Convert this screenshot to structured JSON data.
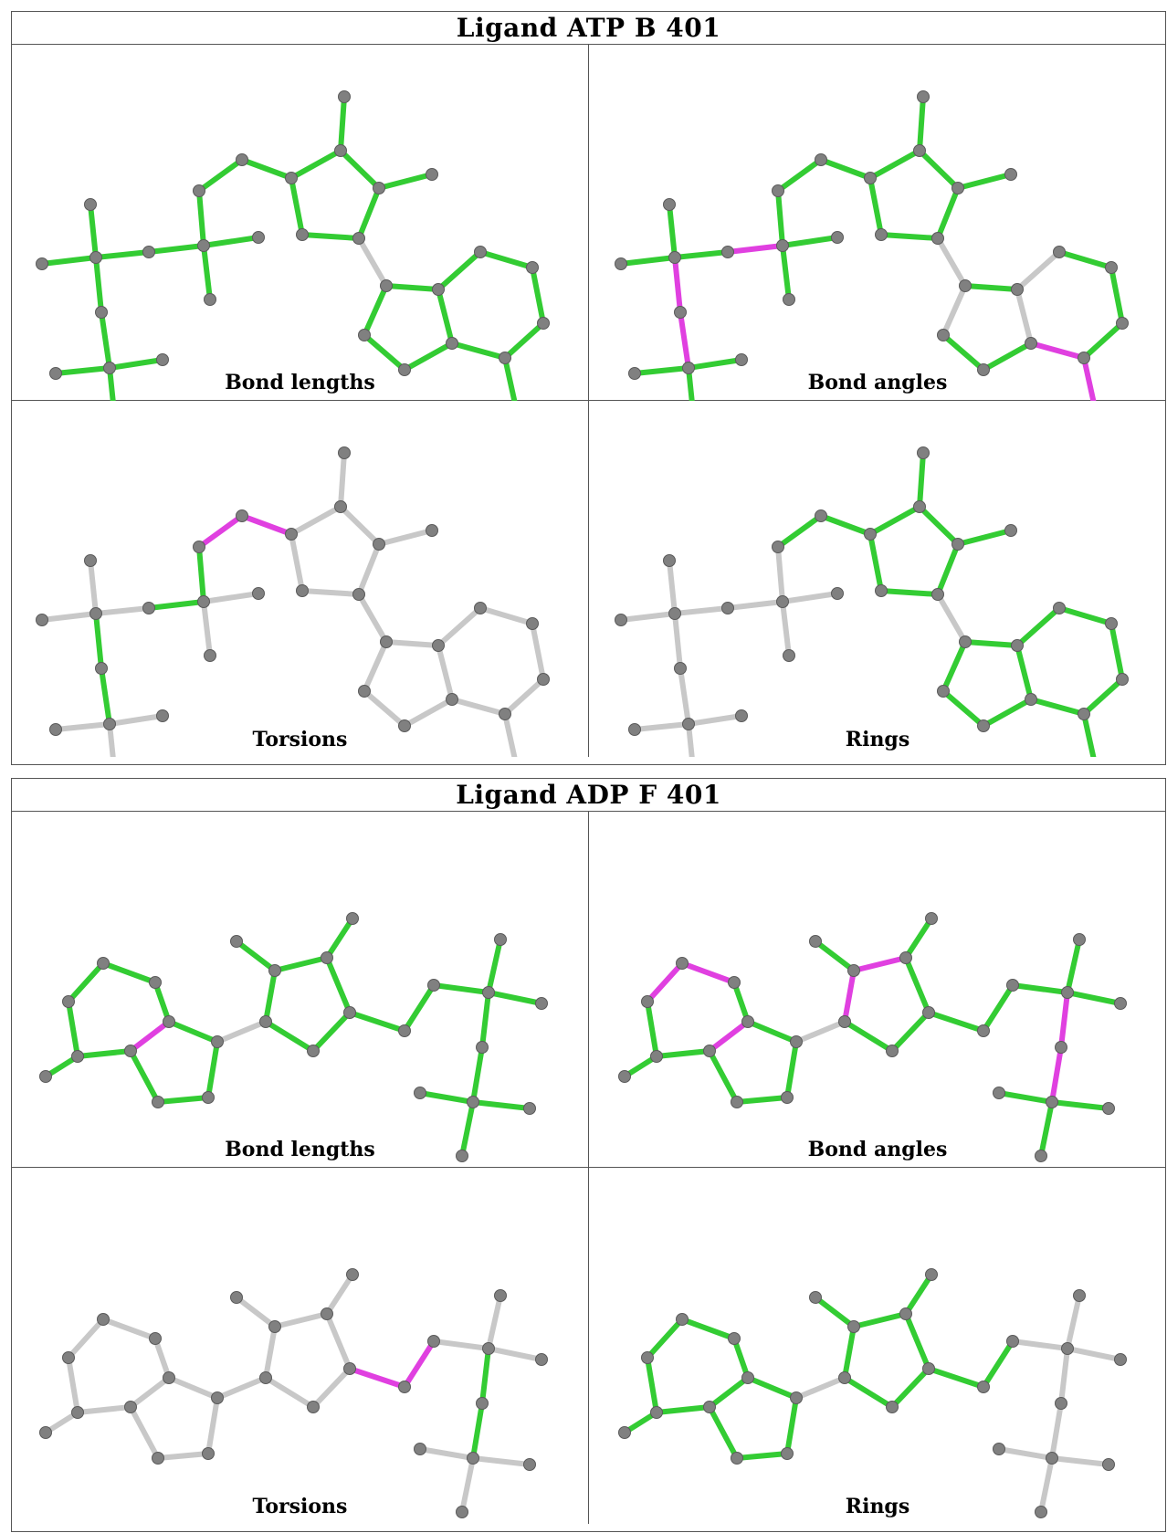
{
  "colors": {
    "pass": "#33cc33",
    "outlier": "#e040e0",
    "unchecked": "#c8c8c8",
    "atom": "#808080"
  },
  "ligands": [
    {
      "title": "Ligand ATP B 401",
      "panels": [
        {
          "label": "Bond lengths",
          "highlight": {
            "green": [
              "alpha",
              "beta",
              "gamma",
              "ribose",
              "bridge",
              "purine"
            ],
            "magenta": []
          }
        },
        {
          "label": "Bond angles",
          "highlight": {
            "green": [
              "alpha",
              "beta",
              "gamma",
              "ribose",
              "bridge",
              "purine6"
            ],
            "magenta": [
              "pa-pb",
              "amino"
            ]
          }
        },
        {
          "label": "Torsions",
          "highlight": {
            "green": [
              "pa-pb",
              "o-pa"
            ],
            "magenta": [
              "c4-c5",
              "c5-o"
            ]
          }
        },
        {
          "label": "Rings",
          "highlight": {
            "green": [
              "ribose",
              "purine"
            ],
            "magenta": []
          }
        }
      ]
    },
    {
      "title": "Ligand ADP F 401",
      "panels": [
        {
          "label": "Bond lengths",
          "highlight": {
            "green": [
              "alpha",
              "beta",
              "ribose",
              "bridge",
              "purine"
            ],
            "magenta": [
              "c4-n9"
            ]
          }
        },
        {
          "label": "Bond angles",
          "highlight": {
            "green": [
              "alpha",
              "beta",
              "ribose",
              "bridge",
              "purine"
            ],
            "magenta": [
              "pa-pb",
              "ring6",
              "ribo-top",
              "c4-n9"
            ]
          }
        },
        {
          "label": "Torsions",
          "highlight": {
            "green": [
              "pa-pb",
              "o-pa"
            ],
            "magenta": [
              "c4-c5",
              "c5-o"
            ]
          }
        },
        {
          "label": "Rings",
          "highlight": {
            "green": [
              "ribose",
              "purine"
            ],
            "magenta": []
          }
        }
      ]
    }
  ]
}
